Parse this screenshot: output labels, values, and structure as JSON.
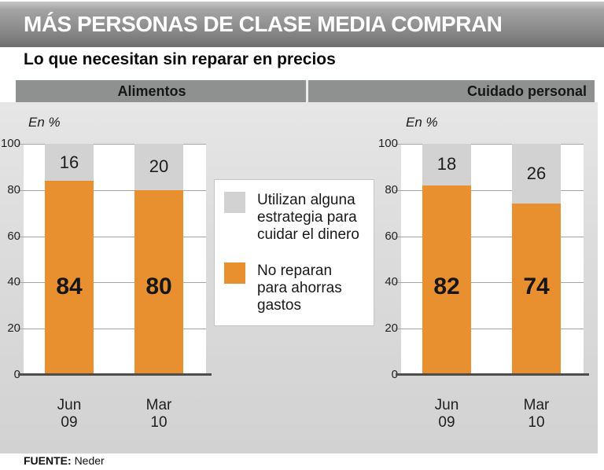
{
  "header": {
    "title": "MÁS PERSONAS DE CLASE MEDIA COMPRAN"
  },
  "subtitle": "Lo que necesitan sin reparar en precios",
  "sections": [
    {
      "label": "Alimentos"
    },
    {
      "label": "Cuidado personal"
    }
  ],
  "legend": [
    {
      "label": "Utilizan alguna estrategia para cuidar el dinero",
      "color": "#d2d2d2"
    },
    {
      "label": "No reparan para ahorras gastos",
      "color": "#e8902f"
    }
  ],
  "footer": {
    "source_label": "FUENTE:",
    "source_value": "Neder"
  },
  "colors": {
    "orange": "#e8902f",
    "gray_segment": "#d2d2d2",
    "band": "#8f9190",
    "header_gray": "#8f8f8f"
  },
  "chart_data": [
    {
      "type": "bar",
      "stacked": true,
      "title": "Alimentos",
      "unit_label": "En %",
      "categories": [
        "Jun 09",
        "Mar 10"
      ],
      "series": [
        {
          "name": "No reparan para ahorras gastos",
          "color": "#e8902f",
          "values": [
            84,
            80
          ]
        },
        {
          "name": "Utilizan alguna estrategia para cuidar el dinero",
          "color": "#d2d2d2",
          "values": [
            16,
            20
          ]
        }
      ],
      "ylim": [
        0,
        100
      ],
      "yticks": [
        0,
        20,
        40,
        60,
        80,
        100
      ],
      "grid": true,
      "legend_position": "center-between-charts"
    },
    {
      "type": "bar",
      "stacked": true,
      "title": "Cuidado personal",
      "unit_label": "En %",
      "categories": [
        "Jun 09",
        "Mar 10"
      ],
      "series": [
        {
          "name": "No reparan para ahorras gastos",
          "color": "#e8902f",
          "values": [
            82,
            74
          ]
        },
        {
          "name": "Utilizan alguna estrategia para cuidar el dinero",
          "color": "#d2d2d2",
          "values": [
            18,
            26
          ]
        }
      ],
      "ylim": [
        0,
        100
      ],
      "yticks": [
        0,
        20,
        40,
        60,
        80,
        100
      ],
      "grid": true,
      "legend_position": "center-between-charts"
    }
  ]
}
